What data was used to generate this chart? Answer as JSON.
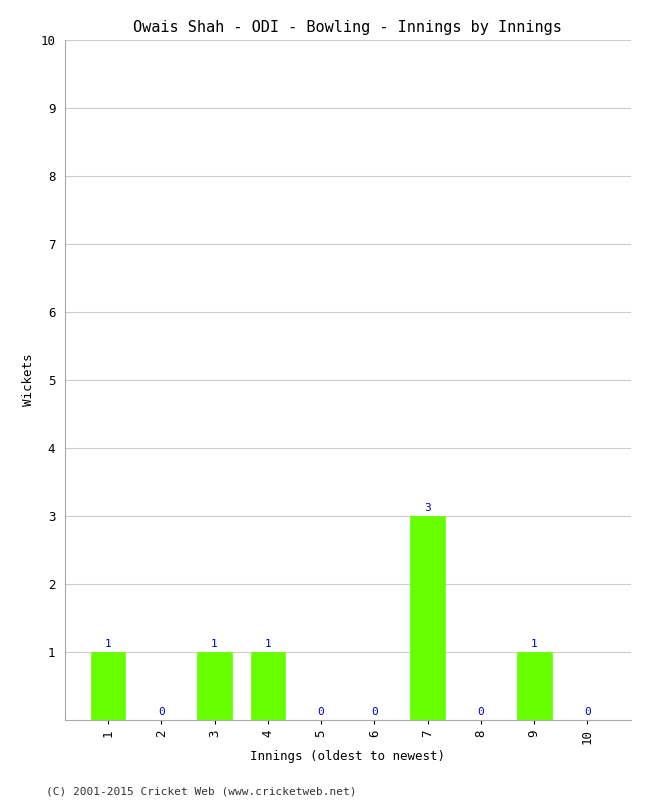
{
  "title": "Owais Shah - ODI - Bowling - Innings by Innings",
  "xlabel": "Innings (oldest to newest)",
  "ylabel": "Wickets",
  "footer": "(C) 2001-2015 Cricket Web (www.cricketweb.net)",
  "innings": [
    1,
    2,
    3,
    4,
    5,
    6,
    7,
    8,
    9,
    10
  ],
  "wickets": [
    1,
    0,
    1,
    1,
    0,
    0,
    3,
    0,
    1,
    0
  ],
  "bar_color": "#66ff00",
  "bar_edge_color": "#66ff00",
  "label_color": "#0000cc",
  "ylim": [
    0,
    10
  ],
  "yticks": [
    0,
    1,
    2,
    3,
    4,
    5,
    6,
    7,
    8,
    9,
    10
  ],
  "background_color": "#ffffff",
  "grid_color": "#cccccc",
  "title_fontsize": 11,
  "axis_label_fontsize": 9,
  "tick_fontsize": 9,
  "annotation_fontsize": 8,
  "footer_fontsize": 8
}
